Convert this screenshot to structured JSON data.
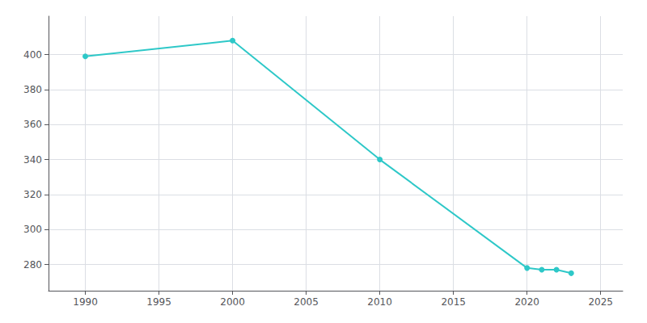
{
  "chart_data": {
    "type": "line",
    "x": [
      1990,
      2000,
      2010,
      2020,
      2021,
      2022,
      2023
    ],
    "values": [
      399,
      408,
      340,
      278,
      277,
      277,
      275
    ],
    "color": "#2ec8c8",
    "marker": "circle",
    "xlim": [
      1987.5,
      2026.5
    ],
    "ylim": [
      265,
      422
    ],
    "xticks": [
      1990,
      1995,
      2000,
      2005,
      2010,
      2015,
      2020,
      2025
    ],
    "yticks": [
      280,
      300,
      320,
      340,
      360,
      380,
      400
    ],
    "grid": true
  }
}
